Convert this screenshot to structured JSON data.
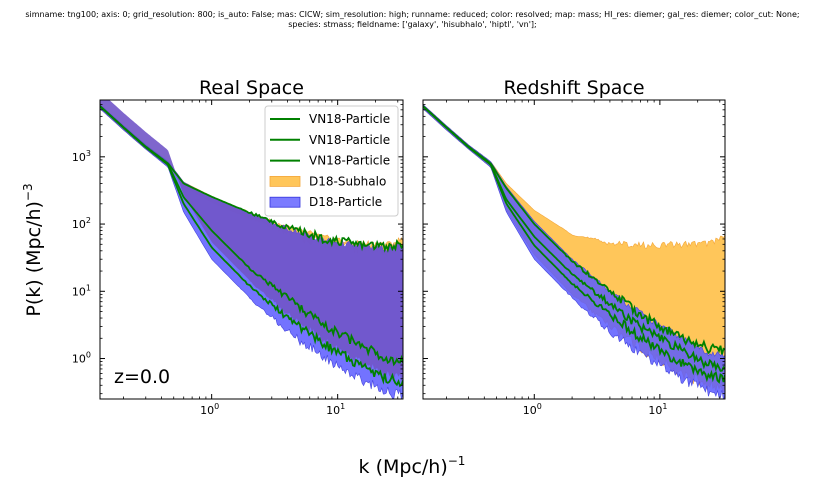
{
  "header": {
    "line1": "simname: tng100; axis: 0; grid_resolution: 800; is_auto: False; mas: CICW; sim_resolution: high; runname: reduced; color: resolved; map: mass; HI_res: diemer; gal_res: diemer; color_cut: None;",
    "line2": "species: stmass; fieldname: ['galaxy', 'hisubhalo', 'hiptl', 'vn'];"
  },
  "colors": {
    "particle_line": "#008000",
    "subhalo_fill": "#ffc65a",
    "subhalo_edge": "#f3a73c",
    "particle_fill": "#5a5aff",
    "overlap_fill": "#7155c8"
  },
  "chart_data": [
    {
      "type": "area",
      "title": "Real Space",
      "xlabel": "k (Mpc/h)",
      "xlabel_sup": "−1",
      "ylabel": "P(k) (Mpc/h)",
      "ylabel_sup": "−3",
      "xscale": "log",
      "yscale": "log",
      "xlim": [
        0.13,
        33
      ],
      "ylim": [
        0.25,
        7000
      ],
      "xticks": [
        {
          "value": 1,
          "base": "10",
          "exp": "0"
        },
        {
          "value": 10,
          "base": "10",
          "exp": "1"
        }
      ],
      "yticks": [
        {
          "value": 1,
          "base": "10",
          "exp": "0"
        },
        {
          "value": 10,
          "base": "10",
          "exp": "1"
        },
        {
          "value": 100,
          "base": "10",
          "exp": "2"
        },
        {
          "value": 1000,
          "base": "10",
          "exp": "3"
        }
      ],
      "annotation": "z=0.0",
      "legend_position": "top-right",
      "legend": [
        {
          "label": "VN18-Particle",
          "kind": "line",
          "color": "#008000"
        },
        {
          "label": "VN18-Particle",
          "kind": "line",
          "color": "#008000"
        },
        {
          "label": "VN18-Particle",
          "kind": "line",
          "color": "#008000"
        },
        {
          "label": "D18-Subhalo",
          "kind": "patch",
          "color": "#ffc65a"
        },
        {
          "label": "D18-Particle",
          "kind": "patch",
          "color": "#5a5aff"
        }
      ],
      "series": [
        {
          "name": "D18-Subhalo",
          "kind": "band",
          "k": [
            0.13,
            0.2,
            0.3,
            0.45,
            0.6,
            1.0,
            2.0,
            4.0,
            8.0,
            15,
            25,
            33
          ],
          "upper": [
            6000,
            2900,
            1500,
            850,
            420,
            260,
            150,
            90,
            62,
            52,
            50,
            60
          ],
          "lower": [
            5200,
            2500,
            1300,
            720,
            360,
            210,
            120,
            74,
            50,
            42,
            40,
            46
          ]
        },
        {
          "name": "D18-Particle",
          "kind": "band",
          "k": [
            0.13,
            0.2,
            0.3,
            0.45,
            0.6,
            1.0,
            2.0,
            4.0,
            8.0,
            15,
            25,
            33
          ],
          "upper": [
            6000,
            2900,
            1500,
            850,
            420,
            250,
            145,
            85,
            57,
            47,
            43,
            48
          ],
          "lower": [
            5200,
            2500,
            1300,
            700,
            150,
            30,
            8,
            2.5,
            1.0,
            0.5,
            0.32,
            0.28
          ]
        },
        {
          "name": "VN18-Particle",
          "kind": "line",
          "k": [
            0.13,
            0.2,
            0.3,
            0.45,
            0.6,
            1.0,
            2.0,
            4.0,
            8.0,
            15,
            25,
            33
          ],
          "values": [
            5700,
            2750,
            1420,
            800,
            400,
            255,
            148,
            88,
            60,
            50,
            47,
            52
          ]
        },
        {
          "name": "VN18-Particle",
          "kind": "line",
          "k": [
            0.13,
            0.2,
            0.3,
            0.45,
            0.6,
            1.0,
            2.0,
            4.0,
            8.0,
            15,
            25,
            33
          ],
          "values": [
            5650,
            2720,
            1400,
            780,
            250,
            80,
            22,
            8,
            3.0,
            1.6,
            1.0,
            0.9
          ]
        },
        {
          "name": "VN18-Particle",
          "kind": "line",
          "k": [
            0.13,
            0.2,
            0.3,
            0.45,
            0.6,
            1.0,
            2.0,
            4.0,
            8.0,
            15,
            25,
            33
          ],
          "values": [
            5600,
            2700,
            1380,
            760,
            200,
            45,
            12,
            4.0,
            1.6,
            0.8,
            0.5,
            0.45
          ]
        }
      ]
    },
    {
      "type": "area",
      "title": "Redshift Space",
      "xscale": "log",
      "yscale": "log",
      "xlim": [
        0.13,
        33
      ],
      "ylim": [
        0.25,
        7000
      ],
      "xticks": [
        {
          "value": 1,
          "base": "10",
          "exp": "0"
        },
        {
          "value": 10,
          "base": "10",
          "exp": "1"
        }
      ],
      "yticks": [],
      "series": [
        {
          "name": "D18-Subhalo",
          "kind": "band",
          "k": [
            0.13,
            0.2,
            0.3,
            0.45,
            0.6,
            1.0,
            2.0,
            4.0,
            8.0,
            15,
            25,
            33
          ],
          "upper": [
            6000,
            2900,
            1500,
            850,
            400,
            160,
            70,
            52,
            48,
            50,
            52,
            68
          ],
          "lower": [
            5200,
            2500,
            1300,
            700,
            160,
            35,
            9,
            3.0,
            1.2,
            0.6,
            0.4,
            0.35
          ]
        },
        {
          "name": "D18-Particle",
          "kind": "band",
          "k": [
            0.13,
            0.2,
            0.3,
            0.45,
            0.6,
            1.0,
            2.0,
            4.0,
            8.0,
            15,
            25,
            33
          ],
          "upper": [
            6000,
            2900,
            1500,
            850,
            360,
            110,
            30,
            10,
            4.0,
            2.0,
            1.2,
            1.1
          ],
          "lower": [
            5200,
            2500,
            1300,
            700,
            150,
            30,
            8,
            2.5,
            1.0,
            0.5,
            0.32,
            0.28
          ]
        },
        {
          "name": "VN18-Particle",
          "kind": "line",
          "k": [
            0.13,
            0.2,
            0.3,
            0.45,
            0.6,
            1.0,
            2.0,
            4.0,
            8.0,
            15,
            25,
            33
          ],
          "values": [
            5700,
            2750,
            1420,
            800,
            340,
            100,
            28,
            10,
            3.8,
            2.0,
            1.4,
            1.3
          ]
        },
        {
          "name": "VN18-Particle",
          "kind": "line",
          "k": [
            0.13,
            0.2,
            0.3,
            0.45,
            0.6,
            1.0,
            2.0,
            4.0,
            8.0,
            15,
            25,
            33
          ],
          "values": [
            5650,
            2720,
            1400,
            780,
            230,
            65,
            18,
            6.5,
            2.5,
            1.3,
            0.8,
            0.75
          ]
        },
        {
          "name": "VN18-Particle",
          "kind": "line",
          "k": [
            0.13,
            0.2,
            0.3,
            0.45,
            0.6,
            1.0,
            2.0,
            4.0,
            8.0,
            15,
            25,
            33
          ],
          "values": [
            5600,
            2700,
            1380,
            760,
            200,
            48,
            13,
            4.5,
            1.7,
            0.85,
            0.55,
            0.5
          ]
        }
      ]
    }
  ]
}
